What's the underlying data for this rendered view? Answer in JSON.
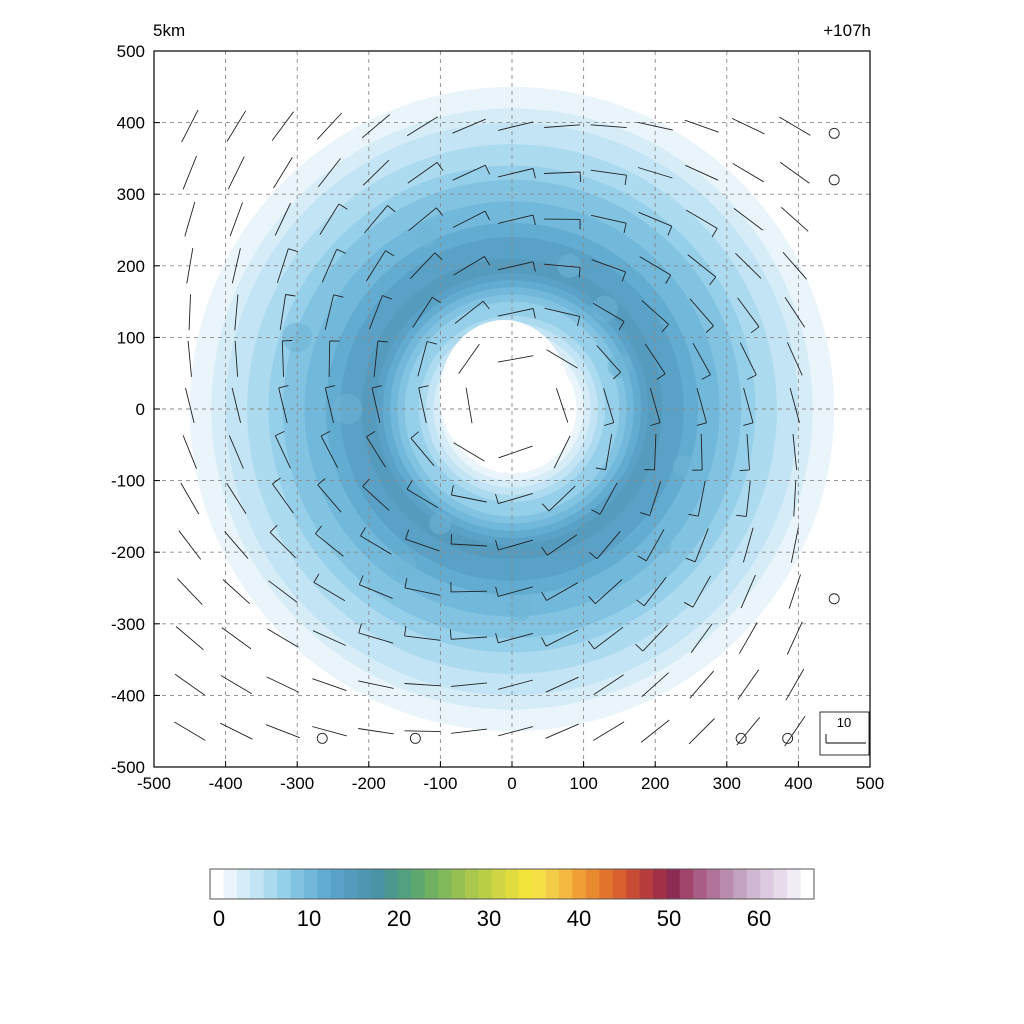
{
  "chart_data": {
    "type": "heatmap",
    "title_left": "5km",
    "title_right": "+107h",
    "xlabel": "",
    "ylabel": "",
    "xlim": [
      -500,
      500
    ],
    "ylim": [
      -500,
      500
    ],
    "x_ticks": [
      "-500",
      "-400",
      "-300",
      "-200",
      "-100",
      "0",
      "100",
      "200",
      "300",
      "400",
      "500"
    ],
    "y_ticks": [
      "500",
      "400",
      "300",
      "200",
      "100",
      "0",
      "-100",
      "-200",
      "-300",
      "-400",
      "-500"
    ],
    "grid": true,
    "field": {
      "description": "annular ring of weak values centred at origin",
      "eye_radius_km": 90,
      "ring_peak_radius_km": 200,
      "ring_peak_value": 15,
      "outer_radius_km": 470
    },
    "colorbar": {
      "ticks": [
        "0",
        "10",
        "20",
        "30",
        "40",
        "50",
        "60"
      ],
      "min": 0,
      "max": 66,
      "colors": [
        "#ffffff",
        "#eaf5fb",
        "#d6edf8",
        "#c2e4f4",
        "#acdaef",
        "#96cfe9",
        "#82c3e2",
        "#71b8da",
        "#63acd1",
        "#5aa1c7",
        "#549bbe",
        "#4f96b3",
        "#4a92a5",
        "#4c9891",
        "#52a07f",
        "#5ea86f",
        "#6fb063",
        "#82b95a",
        "#96c152",
        "#a9c84d",
        "#bcce48",
        "#cfd543",
        "#e1dd3f",
        "#f2e43b",
        "#f6e045",
        "#f4cd48",
        "#f4b73f",
        "#f09f36",
        "#ea8a30",
        "#e3742e",
        "#d8602f",
        "#c94d35",
        "#b63c3d",
        "#a23046",
        "#8e2b52",
        "#a0446c",
        "#a85c86",
        "#b0749b",
        "#b98caf",
        "#c4a3c1",
        "#d0b8d2",
        "#dccbe1",
        "#e8dcec",
        "#f3edf6",
        "#ffffff"
      ]
    },
    "wind_reference": {
      "label": "10"
    },
    "calm_points": [
      {
        "x": 450,
        "y": 385
      },
      {
        "x": 450,
        "y": 320
      },
      {
        "x": 450,
        "y": -265
      },
      {
        "x": -265,
        "y": -460
      },
      {
        "x": -135,
        "y": -460
      },
      {
        "x": 320,
        "y": -460
      },
      {
        "x": 385,
        "y": -460
      }
    ],
    "wind_field": {
      "grid_start_km": -450,
      "grid_step_km": 65,
      "grid_count": 14,
      "eye_radius_km": 40,
      "max_speed_radius_km": 200,
      "max_speed": 35
    }
  }
}
